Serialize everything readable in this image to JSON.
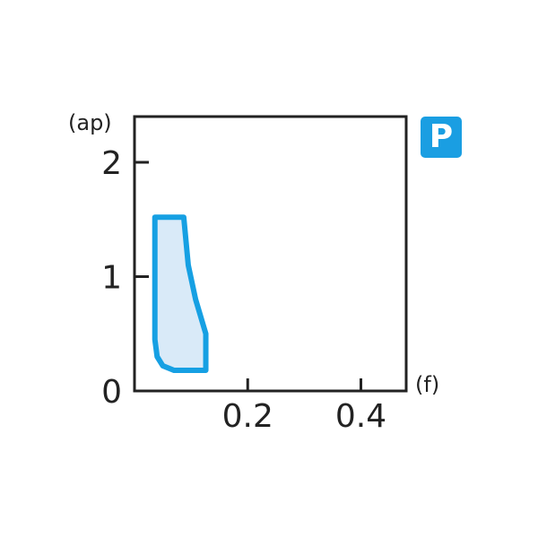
{
  "chart_data": {
    "type": "area",
    "title": "",
    "xlabel": "(f)",
    "ylabel": "(ap)",
    "xlim": [
      0,
      0.48
    ],
    "ylim": [
      0,
      2.4
    ],
    "x_ticks": [
      {
        "v": 0.2,
        "label": "0.2"
      },
      {
        "v": 0.4,
        "label": "0.4"
      }
    ],
    "y_ticks": [
      {
        "v": 0,
        "label": "0"
      },
      {
        "v": 1,
        "label": "1"
      },
      {
        "v": 2,
        "label": "2"
      }
    ],
    "grid": false,
    "region": [
      [
        0.036,
        1.52
      ],
      [
        0.087,
        1.52
      ],
      [
        0.095,
        1.1
      ],
      [
        0.108,
        0.8
      ],
      [
        0.126,
        0.5
      ],
      [
        0.126,
        0.18
      ],
      [
        0.07,
        0.18
      ],
      [
        0.05,
        0.22
      ],
      [
        0.04,
        0.3
      ],
      [
        0.036,
        0.45
      ]
    ],
    "colors": {
      "fill": "#d9eaf8",
      "stroke": "#16a0e3",
      "axis": "#222222"
    },
    "badge": {
      "label": "P",
      "color": "#1a9ee2"
    }
  }
}
